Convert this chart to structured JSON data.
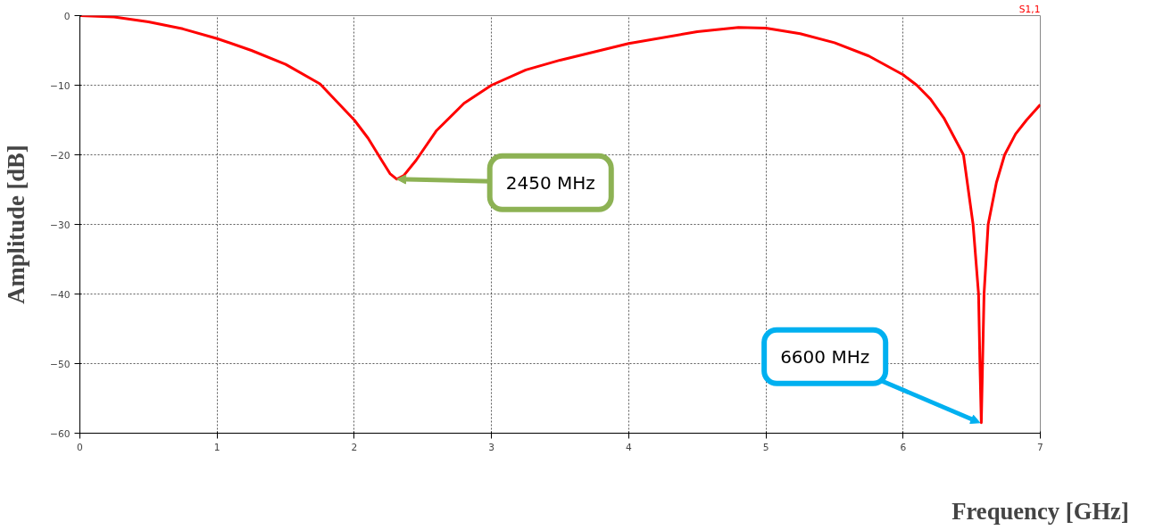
{
  "chart_data": {
    "type": "line",
    "xlabel": "Frequency [GHz]",
    "ylabel": "Amplitude [dB]",
    "x": [
      0,
      0.25,
      0.5,
      0.75,
      1,
      1.25,
      1.5,
      1.75,
      2,
      2.1,
      2.2,
      2.26,
      2.31,
      2.36,
      2.45,
      2.6,
      2.8,
      3,
      3.25,
      3.5,
      4,
      4.5,
      4.8,
      5,
      5.25,
      5.5,
      5.75,
      6,
      6.1,
      6.2,
      6.3,
      6.44,
      6.51,
      6.55,
      6.56,
      6.57,
      6.59,
      6.62,
      6.68,
      6.74,
      6.82,
      6.9,
      7
    ],
    "series": [
      {
        "name": "S1,1",
        "color": "#ff0000",
        "values": [
          0,
          -0.2,
          -0.9,
          -1.9,
          -3.3,
          -5,
          -7,
          -9.8,
          -15,
          -17.6,
          -20.8,
          -22.7,
          -23.5,
          -23,
          -20.8,
          -16.5,
          -12.6,
          -10,
          -7.8,
          -6.4,
          -4,
          -2.3,
          -1.7,
          -1.8,
          -2.6,
          -3.9,
          -5.8,
          -8.5,
          -10,
          -12,
          -14.8,
          -20,
          -30,
          -40,
          -50,
          -58.5,
          -40,
          -30,
          -24,
          -20,
          -17,
          -15,
          -12.8
        ]
      }
    ],
    "xlim": [
      0,
      7
    ],
    "ylim": [
      -60,
      0
    ],
    "xticks": [
      0,
      1,
      2,
      3,
      4,
      5,
      6,
      7
    ],
    "yticks": [
      -60,
      -50,
      -40,
      -30,
      -20,
      -10,
      0
    ],
    "grid": true,
    "line_style": "solid",
    "annotations": [
      {
        "text": "2450 MHz",
        "x": 2.31,
        "y": -23.5
      },
      {
        "text": "6600 MHz",
        "x": 6.56,
        "y": -58.5
      }
    ]
  }
}
